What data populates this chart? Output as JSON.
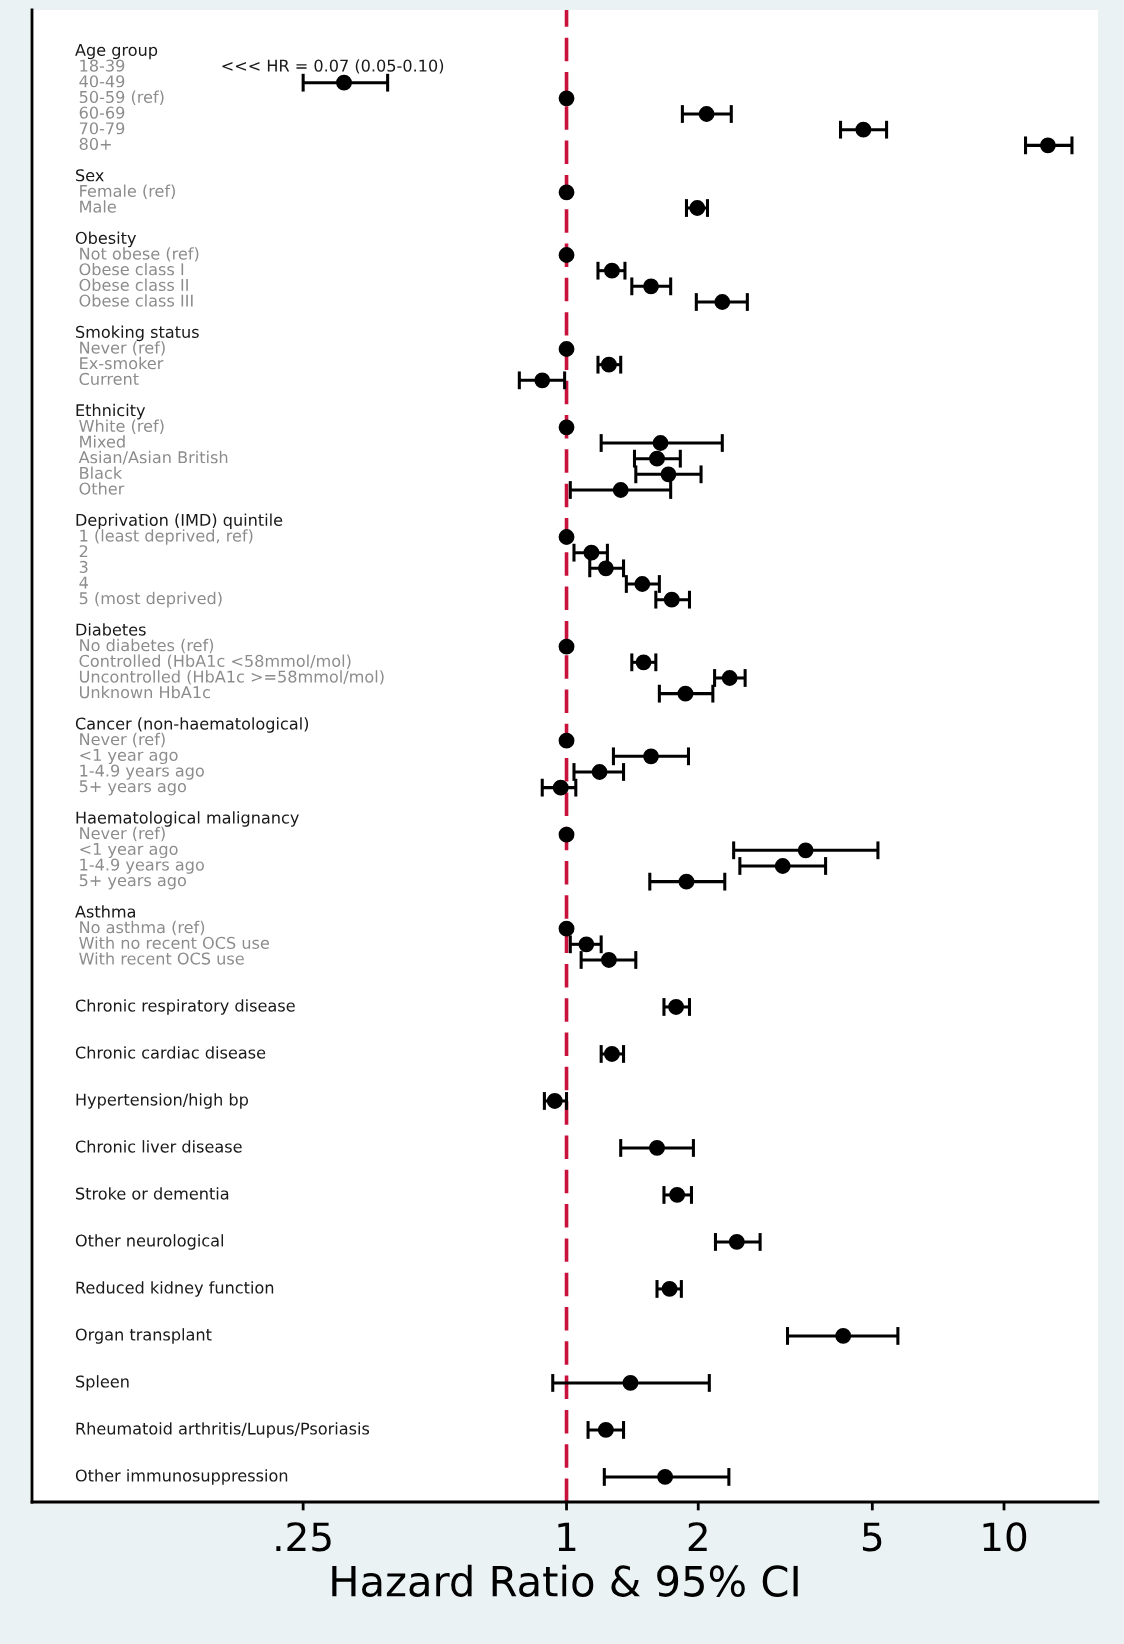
{
  "chart_data": {
    "type": "scatter",
    "orientation": "horizontal",
    "color": "#000000",
    "marker": "circle",
    "log": "x",
    "xlim": [
      0.06,
      16.4
    ],
    "xticks": [
      {
        "value": 0.25,
        "label": ".25"
      },
      1,
      2,
      5,
      10
    ],
    "xlabel": "Hazard Ratio & 95% CI",
    "ref_lines": [
      {
        "axis": "x",
        "value": 1,
        "color": "#c8123c",
        "line_style": "dashed"
      }
    ],
    "annotations": [
      {
        "text": "<<< HR = 0.07 (0.05-0.10)",
        "y": "18-39"
      }
    ],
    "categories": [
      "Age group",
      "18-39",
      "40-49",
      "50-59 (ref)",
      "60-69",
      "70-79",
      "80+",
      null,
      "Sex",
      "Female (ref)",
      "Male",
      null,
      "Obesity",
      "Not obese (ref)",
      "Obese class I",
      "Obese class II",
      "Obese class III",
      null,
      "Smoking status",
      "Never (ref)",
      "Ex-smoker",
      "Current",
      null,
      "Ethnicity",
      "White (ref)",
      "Mixed",
      "Asian/Asian British",
      "Black",
      "Other",
      null,
      "Deprivation (IMD) quintile",
      "1 (least deprived, ref)",
      "2",
      "3",
      "4",
      "5 (most deprived)",
      null,
      "Diabetes",
      "No diabetes (ref)",
      "Controlled (HbA1c <58mmol/mol)",
      "Uncontrolled (HbA1c >=58mmol/mol)",
      "Unknown HbA1c",
      null,
      "Cancer (non-haematological)",
      "Never (ref)",
      "<1 year ago",
      "1-4.9 years ago",
      "5+ years ago",
      null,
      "Haematological malignancy",
      "Never (ref)",
      "<1 year ago",
      "1-4.9 years ago",
      "5+ years ago",
      null,
      "Asthma",
      "No asthma (ref)",
      "With no recent OCS use",
      "With recent OCS use",
      null,
      null,
      "Chronic respiratory disease",
      null,
      null,
      "Chronic cardiac disease",
      null,
      null,
      "Hypertension/high bp",
      null,
      null,
      "Chronic liver disease",
      null,
      null,
      "Stroke or dementia",
      null,
      null,
      "Other neurological",
      null,
      null,
      "Reduced kidney function",
      null,
      null,
      "Organ transplant",
      null,
      null,
      "Spleen",
      null,
      null,
      "Rheumatoid arthritis/Lupus/Psoriasis",
      null,
      null,
      "Other immunosuppression"
    ],
    "values": [
      null,
      null,
      0.31,
      1,
      2.09,
      4.77,
      12.6,
      null,
      null,
      1,
      1.99,
      null,
      null,
      1,
      1.27,
      1.56,
      2.27,
      null,
      null,
      1,
      1.25,
      0.88,
      null,
      null,
      1,
      1.64,
      1.61,
      1.71,
      1.33,
      null,
      null,
      1,
      1.14,
      1.23,
      1.49,
      1.74,
      null,
      null,
      1,
      1.5,
      2.36,
      1.87,
      null,
      null,
      1,
      1.56,
      1.19,
      0.97,
      null,
      null,
      1,
      3.52,
      3.12,
      1.88,
      null,
      null,
      1,
      1.11,
      1.25,
      null,
      null,
      1.78,
      null,
      null,
      1.27,
      null,
      null,
      0.94,
      null,
      null,
      1.61,
      null,
      null,
      1.79,
      null,
      null,
      2.45,
      null,
      null,
      1.72,
      null,
      null,
      4.29,
      null,
      null,
      1.4,
      null,
      null,
      1.23,
      null,
      null,
      1.68
    ],
    "errors": [
      null,
      null,
      [
        0.25,
        0.39
      ],
      null,
      [
        1.84,
        2.38
      ],
      [
        4.23,
        5.39
      ],
      [
        11.2,
        14.3
      ],
      null,
      null,
      null,
      [
        1.88,
        2.1
      ],
      null,
      null,
      null,
      [
        1.18,
        1.36
      ],
      [
        1.41,
        1.73
      ],
      [
        1.98,
        2.59
      ],
      null,
      null,
      null,
      [
        1.18,
        1.33
      ],
      [
        0.78,
        0.99
      ],
      null,
      null,
      null,
      [
        1.2,
        2.27
      ],
      [
        1.43,
        1.82
      ],
      [
        1.44,
        2.03
      ],
      [
        1.02,
        1.73
      ],
      null,
      null,
      null,
      [
        1.04,
        1.24
      ],
      [
        1.13,
        1.35
      ],
      [
        1.37,
        1.63
      ],
      [
        1.6,
        1.91
      ],
      null,
      null,
      null,
      [
        1.41,
        1.6
      ],
      [
        2.18,
        2.56
      ],
      [
        1.63,
        2.16
      ],
      null,
      null,
      null,
      [
        1.28,
        1.9
      ],
      [
        1.04,
        1.35
      ],
      [
        0.88,
        1.05
      ],
      null,
      null,
      null,
      [
        2.41,
        5.15
      ],
      [
        2.49,
        3.91
      ],
      [
        1.55,
        2.3
      ],
      null,
      null,
      null,
      [
        1.02,
        1.2
      ],
      [
        1.08,
        1.44
      ],
      null,
      null,
      [
        1.67,
        1.91
      ],
      null,
      null,
      [
        1.2,
        1.35
      ],
      null,
      null,
      [
        0.89,
        1.0
      ],
      null,
      null,
      [
        1.33,
        1.95
      ],
      null,
      null,
      [
        1.67,
        1.93
      ],
      null,
      null,
      [
        2.19,
        2.77
      ],
      null,
      null,
      [
        1.61,
        1.83
      ],
      null,
      null,
      [
        3.2,
        5.72
      ],
      null,
      null,
      [
        0.93,
        2.12
      ],
      null,
      null,
      [
        1.12,
        1.35
      ],
      null,
      null,
      [
        1.22,
        2.35
      ]
    ]
  }
}
